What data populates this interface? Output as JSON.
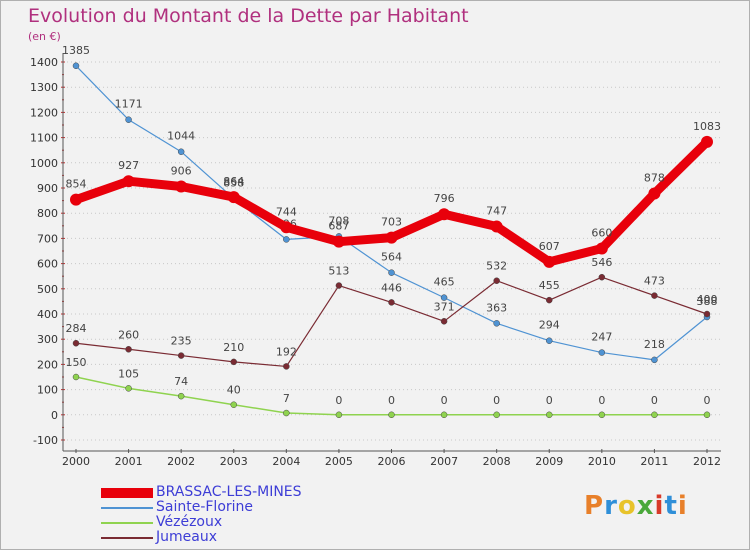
{
  "header": {
    "title": "Evolution du Montant de la Dette par Habitant",
    "unit": "(en €)"
  },
  "logo": {
    "text": "Proxiti",
    "colors": [
      "#e8802a",
      "#2f8fd8",
      "#e8c32a",
      "#4aa83a",
      "#d83a2a",
      "#2f8fd8",
      "#e8802a"
    ]
  },
  "chart_data": {
    "type": "line",
    "x": [
      "2000",
      "2001",
      "2002",
      "2003",
      "2004",
      "2005",
      "2006",
      "2007",
      "2008",
      "2009",
      "2010",
      "2011",
      "2012"
    ],
    "ylim": [
      -100,
      1400
    ],
    "yticks": [
      "-100",
      "0",
      "100",
      "200",
      "300",
      "400",
      "500",
      "600",
      "700",
      "800",
      "900",
      "1000",
      "1100",
      "1200",
      "1300",
      "1400"
    ],
    "grid": "horizontal dotted",
    "legend": "bottom-left",
    "series": [
      {
        "name": "BRASSAC-LES-MINES",
        "color": "#e8000b",
        "values": [
          854,
          927,
          906,
          864,
          744,
          687,
          703,
          796,
          747,
          607,
          660,
          878,
          1083
        ]
      },
      {
        "name": "Sainte-Florine",
        "color": "#4f93d3",
        "values": [
          1385,
          1171,
          1044,
          858,
          696,
          708,
          564,
          465,
          363,
          294,
          247,
          218,
          388
        ]
      },
      {
        "name": "Vézézoux",
        "color": "#8fd34f",
        "values": [
          150,
          105,
          74,
          40,
          7,
          0,
          0,
          0,
          0,
          0,
          0,
          0,
          0
        ]
      },
      {
        "name": "Jumeaux",
        "color": "#7a2b33",
        "values": [
          284,
          260,
          235,
          210,
          192,
          513,
          446,
          371,
          532,
          455,
          546,
          473,
          400
        ]
      }
    ]
  }
}
